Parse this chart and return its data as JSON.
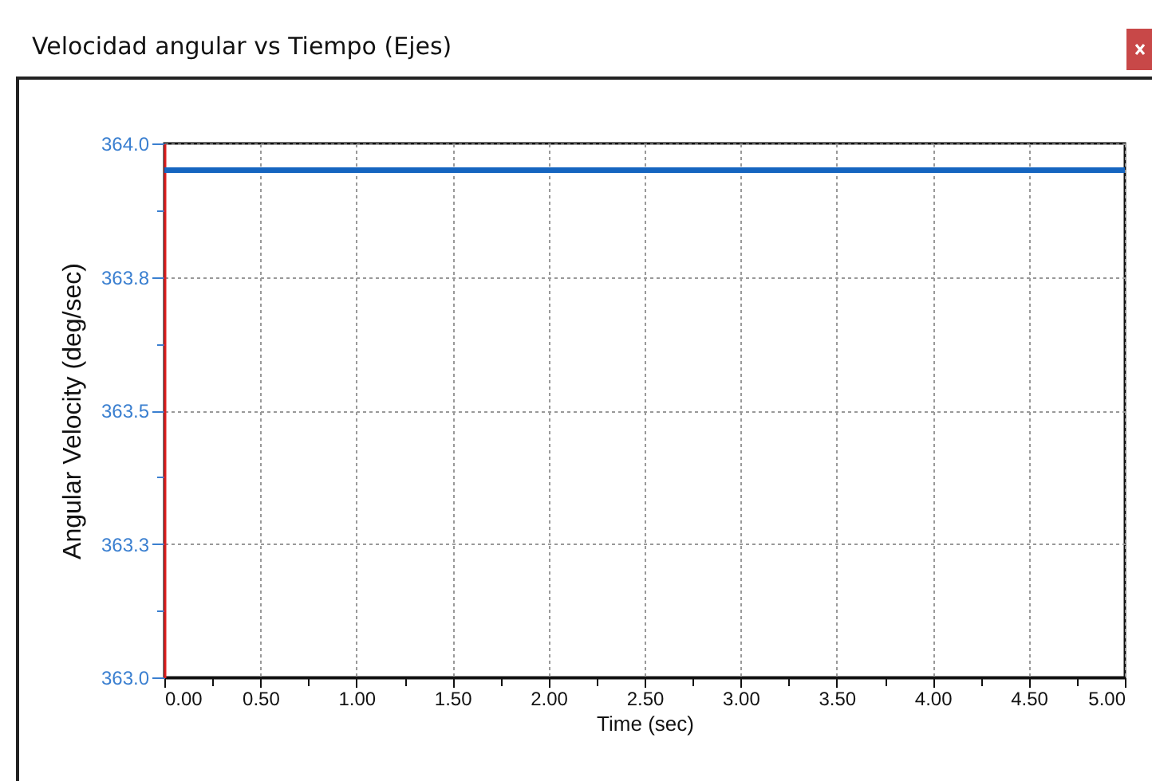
{
  "chart_data": {
    "type": "line",
    "title": "Velocidad angular vs Tiempo (Ejes)",
    "xlabel": "Time (sec)",
    "ylabel": "Angular Velocity (deg/sec)",
    "x": [
      0,
      5
    ],
    "series": [
      {
        "color": "#1565c0",
        "values": [
          363.95,
          363.95
        ]
      }
    ],
    "xlim": [
      0,
      5
    ],
    "ylim": [
      363,
      364
    ],
    "xticks": [
      {
        "value": 0,
        "label": "0.00"
      },
      {
        "value": 0.25,
        "label": null
      },
      {
        "value": 0.5,
        "label": "0.50"
      },
      {
        "value": 0.75,
        "label": null
      },
      {
        "value": 1,
        "label": "1.00"
      },
      {
        "value": 1.25,
        "label": null
      },
      {
        "value": 1.5,
        "label": "1.50"
      },
      {
        "value": 1.75,
        "label": null
      },
      {
        "value": 2,
        "label": "2.00"
      },
      {
        "value": 2.25,
        "label": null
      },
      {
        "value": 2.5,
        "label": "2.50"
      },
      {
        "value": 2.75,
        "label": null
      },
      {
        "value": 3,
        "label": "3.00"
      },
      {
        "value": 3.25,
        "label": null
      },
      {
        "value": 3.5,
        "label": "3.50"
      },
      {
        "value": 3.75,
        "label": null
      },
      {
        "value": 4,
        "label": "4.00"
      },
      {
        "value": 4.25,
        "label": null
      },
      {
        "value": 4.5,
        "label": "4.50"
      },
      {
        "value": 4.75,
        "label": null
      },
      {
        "value": 5,
        "label": "5.00"
      }
    ],
    "yticks": [
      {
        "value": 363,
        "label": "363.0"
      },
      {
        "value": 363.125,
        "label": null
      },
      {
        "value": 363.25,
        "label": "363.3"
      },
      {
        "value": 363.375,
        "label": null
      },
      {
        "value": 363.5,
        "label": "363.5"
      },
      {
        "value": 363.625,
        "label": null
      },
      {
        "value": 363.75,
        "label": "363.8"
      },
      {
        "value": 363.875,
        "label": null
      },
      {
        "value": 364,
        "label": "364.0"
      }
    ],
    "grid": true,
    "marker": "none",
    "line_style": "solid"
  }
}
